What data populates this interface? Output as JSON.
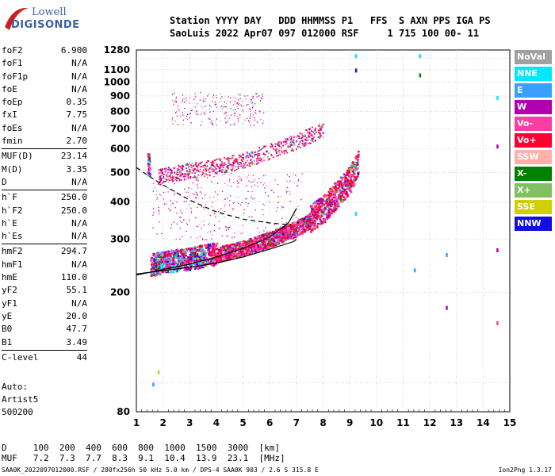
{
  "logo": {
    "line1": "Lowell",
    "line2": "DIGISONDE"
  },
  "header": {
    "line1": "Station YYYY DAY   DDD HHMMSS P1   FFS  S AXN PPS IGA PS",
    "line2": "SaoLuis 2022 Apr07 097 012000 RSF     1 715 100 00- 11"
  },
  "params": [
    {
      "name": "foF2",
      "value": "6.900"
    },
    {
      "name": "foF1",
      "value": "N/A"
    },
    {
      "name": "foF1p",
      "value": "N/A"
    },
    {
      "name": "foE",
      "value": "N/A"
    },
    {
      "name": "foEp",
      "value": "0.35"
    },
    {
      "name": "fxI",
      "value": "7.75"
    },
    {
      "name": "foEs",
      "value": "N/A"
    },
    {
      "name": "fmin",
      "value": "2.70"
    },
    {
      "name": "MUF(D)",
      "value": "23.14",
      "sep": true
    },
    {
      "name": "M(D)",
      "value": "3.35"
    },
    {
      "name": "D",
      "value": "N/A"
    },
    {
      "name": "h`F",
      "value": "250.0",
      "sep": true
    },
    {
      "name": "h`F2",
      "value": "250.0"
    },
    {
      "name": "h`E",
      "value": "N/A"
    },
    {
      "name": "h`Es",
      "value": "N/A"
    },
    {
      "name": "hmF2",
      "value": "294.7",
      "sep": true
    },
    {
      "name": "hmF1",
      "value": "N/A"
    },
    {
      "name": "hmE",
      "value": "110.0"
    },
    {
      "name": "yF2",
      "value": "55.1"
    },
    {
      "name": "yF1",
      "value": "N/A"
    },
    {
      "name": "yE",
      "value": "20.0"
    },
    {
      "name": "B0",
      "value": "47.7"
    },
    {
      "name": "B1",
      "value": "3.49"
    },
    {
      "name": "C-level",
      "value": "44",
      "sep": true
    }
  ],
  "auto": {
    "line1": "Auto:",
    "line2": "Artist5",
    "line3": "500200"
  },
  "legend": [
    {
      "label": "NoVal",
      "color": "#a0a0a0"
    },
    {
      "label": "NNE",
      "color": "#00e8ff"
    },
    {
      "label": "E",
      "color": "#3aa0ff"
    },
    {
      "label": "W",
      "color": "#b000b0"
    },
    {
      "label": "Vo-",
      "color": "#ff3ca0"
    },
    {
      "label": "Vo+",
      "color": "#ff0030"
    },
    {
      "label": "SSW",
      "color": "#ffb0a8"
    },
    {
      "label": "X-",
      "color": "#008000"
    },
    {
      "label": "X+",
      "color": "#80c060"
    },
    {
      "label": "SSE",
      "color": "#d0d000"
    },
    {
      "label": "NNW",
      "color": "#1010e0"
    }
  ],
  "dtable": {
    "line1": "D     100  200  400  600  800  1000  1500  3000  [km]",
    "line2": "MUF   7.2  7.3  7.7  8.3  9.1  10.4  13.9  23.1  [MHz]"
  },
  "footer": {
    "left": "SAA0K_2022097012000.RSF / 280fx256h 50 kHz 5.0 km / DPS-4 SAA0K 903 / 2.6 S 315.8 E",
    "right": "Ion2Png 1.3.17"
  },
  "chart_data": {
    "type": "scatter",
    "title": "",
    "xlabel": "",
    "ylabel": "",
    "xlim": [
      1,
      15
    ],
    "ylim": [
      80,
      1280
    ],
    "yscale": "log",
    "grid": true,
    "xticks": [
      "1",
      "2",
      "3",
      "4",
      "5",
      "6",
      "7",
      "8",
      "9",
      "10",
      "11",
      "12",
      "13",
      "14",
      "15"
    ],
    "yticks": [
      {
        "v": 80,
        "label": "80"
      },
      {
        "v": 200,
        "label": "200"
      },
      {
        "v": 300,
        "label": "300"
      },
      {
        "v": 400,
        "label": "400"
      },
      {
        "v": 500,
        "label": "500"
      },
      {
        "v": 600,
        "label": "600"
      },
      {
        "v": 700,
        "label": "700"
      },
      {
        "v": 800,
        "label": "800"
      },
      {
        "v": 900,
        "label": "900"
      },
      {
        "v": 1000,
        "label": "1000"
      },
      {
        "v": 1100,
        "label": "1100"
      },
      {
        "v": 1280,
        "label": "1280"
      }
    ],
    "ygrid": [
      100,
      200,
      300,
      400,
      500,
      600,
      700,
      800,
      900,
      1000,
      1100,
      1200
    ],
    "profile_curve": [
      [
        1.0,
        230
      ],
      [
        2,
        236
      ],
      [
        3,
        242
      ],
      [
        4,
        250
      ],
      [
        5,
        262
      ],
      [
        6,
        278
      ],
      [
        6.9,
        295
      ],
      [
        7.0,
        300
      ]
    ],
    "trace_curve": [
      [
        1.0,
        228
      ],
      [
        2,
        238
      ],
      [
        3,
        248
      ],
      [
        4,
        262
      ],
      [
        5,
        280
      ],
      [
        6,
        305
      ],
      [
        6.7,
        340
      ],
      [
        7.0,
        380
      ]
    ],
    "dashed_curve": [
      [
        1.0,
        520
      ],
      [
        1.5,
        485
      ],
      [
        2,
        455
      ],
      [
        3,
        405
      ],
      [
        4,
        370
      ],
      [
        5,
        350
      ],
      [
        6,
        340
      ],
      [
        6.8,
        335
      ]
    ],
    "o_trace": [
      [
        1.5,
        240
      ],
      [
        2,
        245
      ],
      [
        3,
        252
      ],
      [
        4,
        262
      ],
      [
        5,
        275
      ],
      [
        6,
        295
      ],
      [
        7,
        320
      ],
      [
        7.5,
        340
      ],
      [
        8,
        365
      ],
      [
        8.5,
        410
      ],
      [
        9,
        460
      ],
      [
        9.3,
        520
      ]
    ],
    "f2_echo": [
      [
        1.8,
        480
      ],
      [
        2.5,
        495
      ],
      [
        3,
        505
      ],
      [
        4,
        520
      ],
      [
        5,
        545
      ],
      [
        6,
        585
      ],
      [
        7,
        630
      ],
      [
        7.5,
        660
      ],
      [
        8,
        690
      ]
    ],
    "sparse_upper": [
      [
        3,
        860
      ],
      [
        4,
        880
      ],
      [
        4.5,
        870
      ],
      [
        3.5,
        790
      ],
      [
        2.5,
        770
      ]
    ],
    "isolated_points": [
      {
        "x": 9.2,
        "y": 1240,
        "color": "#00e8ff"
      },
      {
        "x": 9.2,
        "y": 1110,
        "color": "#1010e0"
      },
      {
        "x": 11.6,
        "y": 1240,
        "color": "#00e8ff"
      },
      {
        "x": 11.6,
        "y": 1070,
        "color": "#008000"
      },
      {
        "x": 14.5,
        "y": 620,
        "color": "#b000b0"
      },
      {
        "x": 14.5,
        "y": 900,
        "color": "#00e8ff"
      },
      {
        "x": 12.6,
        "y": 270,
        "color": "#3aa0ff"
      },
      {
        "x": 12.6,
        "y": 180,
        "color": "#b000b0"
      },
      {
        "x": 14.5,
        "y": 280,
        "color": "#b000b0"
      },
      {
        "x": 14.5,
        "y": 160,
        "color": "#ff3ca0"
      },
      {
        "x": 11.4,
        "y": 240,
        "color": "#3aa0ff"
      },
      {
        "x": 9.2,
        "y": 370,
        "color": "#00e8ff"
      },
      {
        "x": 1.6,
        "y": 100,
        "color": "#3aa0ff"
      },
      {
        "x": 1.8,
        "y": 110,
        "color": "#d0d000"
      }
    ]
  }
}
